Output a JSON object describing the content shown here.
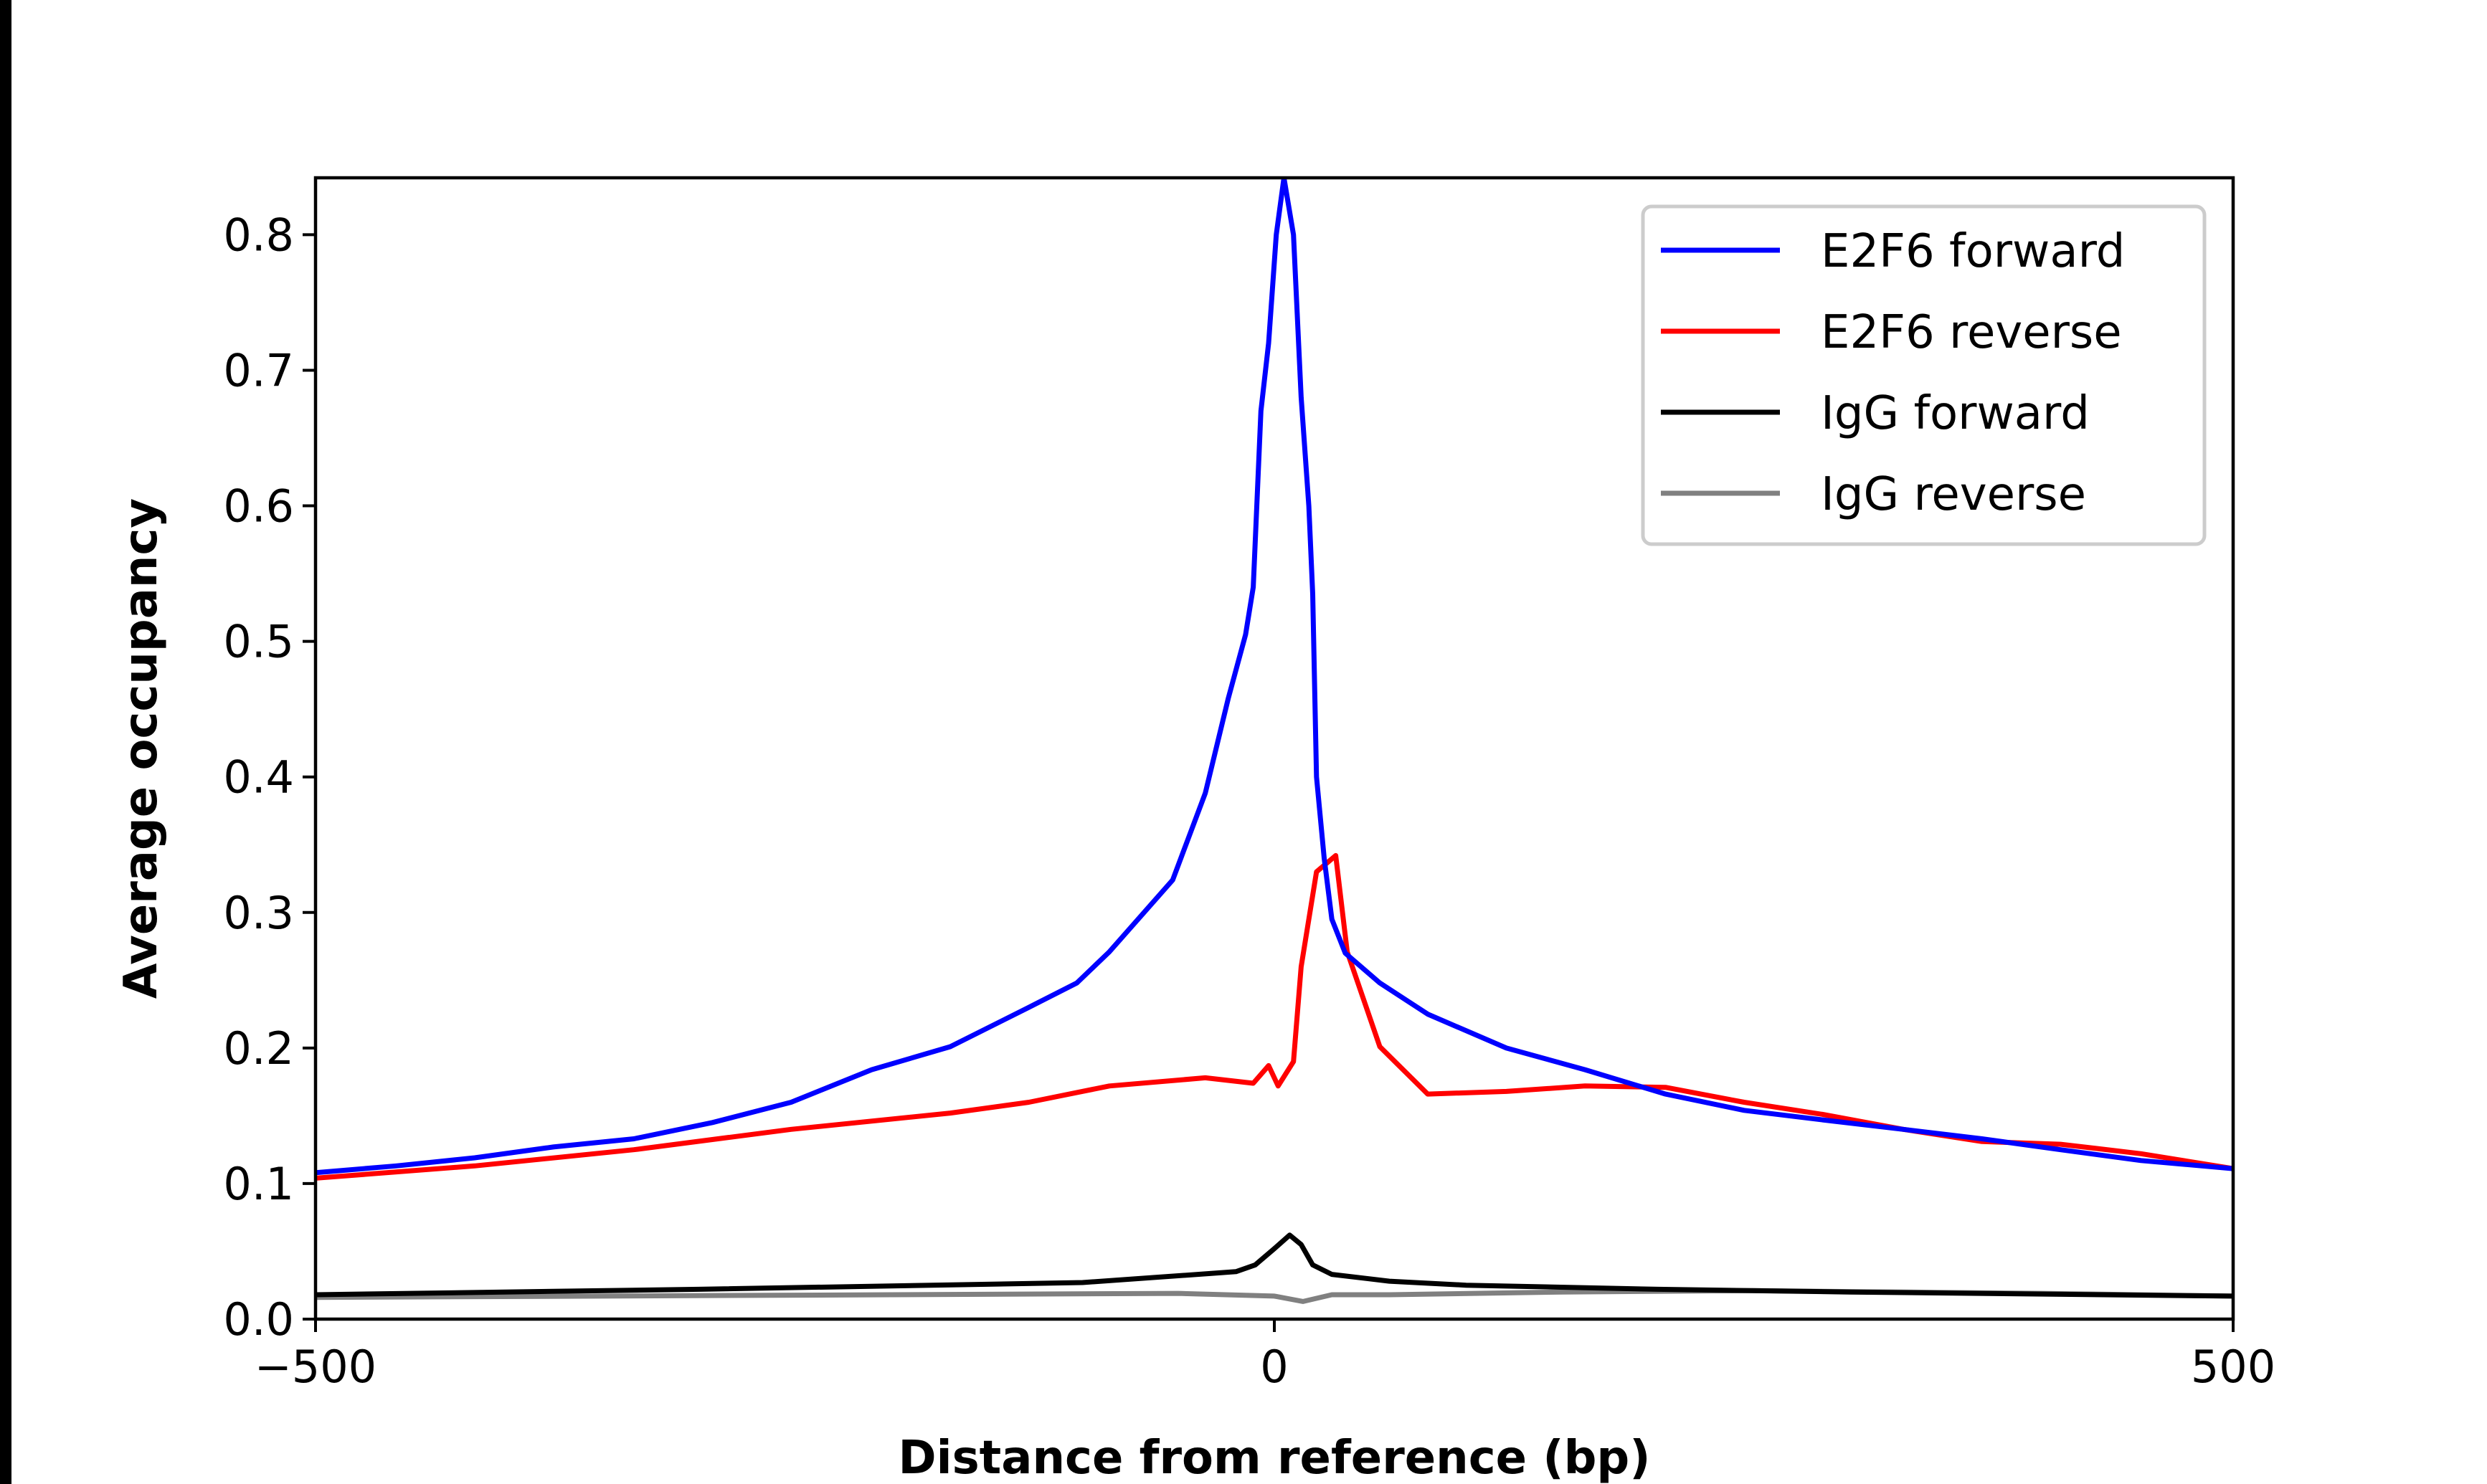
{
  "chart_data": {
    "type": "line",
    "title": "",
    "xlabel": "Distance from reference (bp)",
    "ylabel": "Average occupancy",
    "xlim": [
      -500,
      500
    ],
    "ylim": [
      0,
      0.842
    ],
    "xticks": [
      -500,
      0,
      500
    ],
    "xtick_labels": [
      "−500",
      "0",
      "500"
    ],
    "yticks": [
      0.0,
      0.1,
      0.2,
      0.3,
      0.4,
      0.5,
      0.6,
      0.7,
      0.8
    ],
    "ytick_labels": [
      "0.0",
      "0.1",
      "0.2",
      "0.3",
      "0.4",
      "0.5",
      "0.6",
      "0.7",
      "0.8"
    ],
    "grid": false,
    "legend_position": "top-right",
    "series": [
      {
        "name": "E2F6 forward",
        "color": "#0000ff",
        "x": [
          -500,
          -458,
          -417,
          -376,
          -334,
          -293,
          -252,
          -210,
          -169,
          -128,
          -103,
          -86,
          -53,
          -36,
          -24,
          -15,
          -11,
          -7,
          -3,
          1,
          5,
          10,
          14,
          18,
          20,
          22,
          26,
          30,
          37,
          55,
          80,
          121,
          162,
          204,
          245,
          286,
          328,
          369,
          410,
          452,
          500
        ],
        "y": [
          0.108,
          0.113,
          0.119,
          0.127,
          0.133,
          0.145,
          0.16,
          0.184,
          0.201,
          0.23,
          0.248,
          0.271,
          0.324,
          0.388,
          0.458,
          0.505,
          0.54,
          0.67,
          0.72,
          0.8,
          0.842,
          0.8,
          0.68,
          0.6,
          0.535,
          0.4,
          0.34,
          0.295,
          0.27,
          0.248,
          0.225,
          0.2,
          0.184,
          0.166,
          0.154,
          0.147,
          0.14,
          0.133,
          0.125,
          0.117,
          0.111
        ]
      },
      {
        "name": "E2F6 reverse",
        "color": "#ff0000",
        "x": [
          -500,
          -417,
          -334,
          -252,
          -169,
          -128,
          -86,
          -36,
          -11,
          -3,
          2,
          10,
          14,
          22,
          32,
          38,
          55,
          80,
          121,
          162,
          204,
          245,
          286,
          328,
          369,
          410,
          452,
          500
        ],
        "y": [
          0.104,
          0.113,
          0.125,
          0.14,
          0.152,
          0.16,
          0.172,
          0.178,
          0.174,
          0.187,
          0.172,
          0.19,
          0.26,
          0.33,
          0.342,
          0.271,
          0.201,
          0.166,
          0.168,
          0.172,
          0.171,
          0.16,
          0.151,
          0.14,
          0.131,
          0.129,
          0.122,
          0.111
        ]
      },
      {
        "name": "IgG forward",
        "color": "#000000",
        "x": [
          -500,
          -300,
          -100,
          -20,
          -10,
          0,
          8,
          14,
          20,
          30,
          60,
          100,
          200,
          300,
          500
        ],
        "y": [
          0.018,
          0.022,
          0.027,
          0.035,
          0.04,
          0.052,
          0.062,
          0.055,
          0.04,
          0.033,
          0.028,
          0.025,
          0.022,
          0.02,
          0.017
        ]
      },
      {
        "name": "IgG reverse",
        "color": "#808080",
        "x": [
          -500,
          -200,
          -50,
          0,
          15,
          30,
          60,
          150,
          250,
          400,
          500
        ],
        "y": [
          0.016,
          0.018,
          0.019,
          0.017,
          0.013,
          0.018,
          0.018,
          0.02,
          0.021,
          0.019,
          0.017
        ]
      }
    ]
  }
}
